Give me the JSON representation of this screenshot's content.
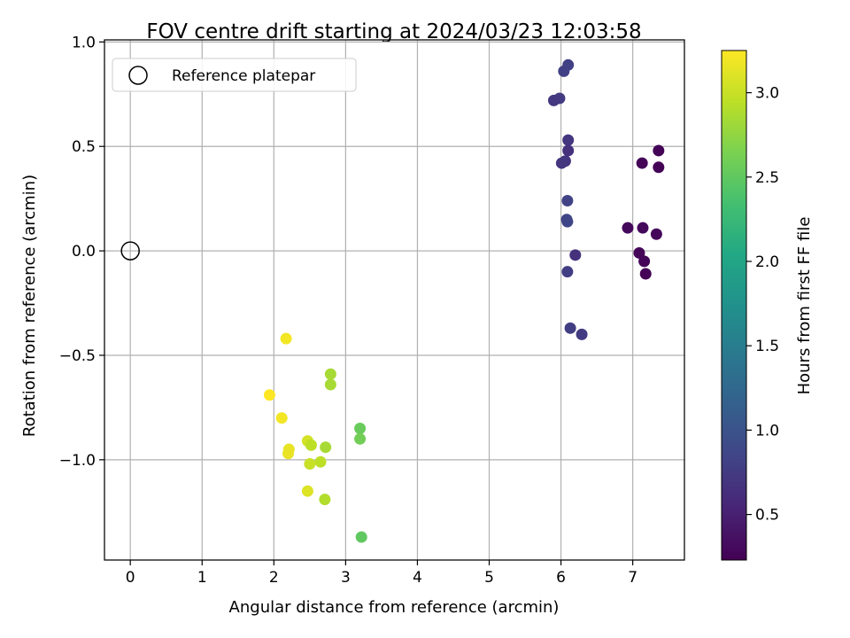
{
  "chart_data": {
    "type": "scatter",
    "title": "FOV centre drift starting at 2024/03/23 12:03:58",
    "xlabel": "Angular distance from reference (arcmin)",
    "ylabel": "Rotation from reference (arcmin)",
    "xlim": [
      -0.36,
      7.72
    ],
    "ylim": [
      -1.48,
      1.01
    ],
    "xticks": [
      0,
      1,
      2,
      3,
      4,
      5,
      6,
      7
    ],
    "yticks": [
      -1.0,
      -0.5,
      0.0,
      0.5,
      1.0
    ],
    "ytick_labels": [
      "−1.0",
      "−0.5",
      "0.0",
      "0.5",
      "1.0"
    ],
    "grid": true,
    "legend": {
      "placement": "top-left",
      "entries": [
        {
          "label": "Reference platepar",
          "marker": "open-circle"
        }
      ]
    },
    "reference_point": {
      "x": 0,
      "y": 0
    },
    "colorbar": {
      "label": "Hours from first FF file",
      "colormap": "viridis",
      "range": [
        0.23,
        3.25
      ],
      "ticks": [
        0.5,
        1.0,
        1.5,
        2.0,
        2.5,
        3.0
      ],
      "tick_labels": [
        "0.5",
        "1.0",
        "1.5",
        "2.0",
        "2.5",
        "3.0"
      ]
    },
    "points": [
      {
        "x": 6.1,
        "y": 0.89,
        "c": 0.8
      },
      {
        "x": 6.04,
        "y": 0.86,
        "c": 0.8
      },
      {
        "x": 5.98,
        "y": 0.73,
        "c": 0.75
      },
      {
        "x": 5.9,
        "y": 0.72,
        "c": 0.72
      },
      {
        "x": 6.1,
        "y": 0.53,
        "c": 0.7
      },
      {
        "x": 6.1,
        "y": 0.48,
        "c": 0.65
      },
      {
        "x": 6.06,
        "y": 0.43,
        "c": 0.68
      },
      {
        "x": 6.01,
        "y": 0.42,
        "c": 0.7
      },
      {
        "x": 6.09,
        "y": 0.24,
        "c": 0.82
      },
      {
        "x": 6.08,
        "y": 0.15,
        "c": 0.85
      },
      {
        "x": 6.09,
        "y": 0.14,
        "c": 0.85
      },
      {
        "x": 6.2,
        "y": -0.02,
        "c": 0.65
      },
      {
        "x": 6.09,
        "y": -0.1,
        "c": 0.78
      },
      {
        "x": 6.13,
        "y": -0.37,
        "c": 0.78
      },
      {
        "x": 6.29,
        "y": -0.4,
        "c": 0.75
      },
      {
        "x": 7.36,
        "y": 0.48,
        "c": 0.25
      },
      {
        "x": 7.13,
        "y": 0.42,
        "c": 0.27
      },
      {
        "x": 7.36,
        "y": 0.4,
        "c": 0.25
      },
      {
        "x": 6.93,
        "y": 0.11,
        "c": 0.3
      },
      {
        "x": 7.14,
        "y": 0.11,
        "c": 0.3
      },
      {
        "x": 7.33,
        "y": 0.08,
        "c": 0.28
      },
      {
        "x": 7.09,
        "y": -0.01,
        "c": 0.27
      },
      {
        "x": 7.16,
        "y": -0.05,
        "c": 0.26
      },
      {
        "x": 7.18,
        "y": -0.11,
        "c": 0.25
      },
      {
        "x": 2.17,
        "y": -0.42,
        "c": 3.2
      },
      {
        "x": 1.94,
        "y": -0.69,
        "c": 3.25
      },
      {
        "x": 2.11,
        "y": -0.8,
        "c": 3.2
      },
      {
        "x": 2.21,
        "y": -0.95,
        "c": 3.15
      },
      {
        "x": 2.2,
        "y": -0.97,
        "c": 3.15
      },
      {
        "x": 2.47,
        "y": -0.91,
        "c": 3.05
      },
      {
        "x": 2.52,
        "y": -0.93,
        "c": 2.95
      },
      {
        "x": 2.5,
        "y": -1.02,
        "c": 3.0
      },
      {
        "x": 2.65,
        "y": -1.01,
        "c": 2.95
      },
      {
        "x": 2.47,
        "y": -1.15,
        "c": 3.1
      },
      {
        "x": 2.71,
        "y": -1.19,
        "c": 2.9
      },
      {
        "x": 2.79,
        "y": -0.59,
        "c": 2.85
      },
      {
        "x": 2.79,
        "y": -0.64,
        "c": 2.85
      },
      {
        "x": 2.72,
        "y": -0.94,
        "c": 2.85
      },
      {
        "x": 3.2,
        "y": -0.85,
        "c": 2.55
      },
      {
        "x": 3.2,
        "y": -0.9,
        "c": 2.6
      },
      {
        "x": 3.22,
        "y": -1.37,
        "c": 2.5
      }
    ]
  }
}
